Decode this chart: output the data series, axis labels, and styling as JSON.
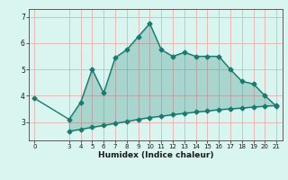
{
  "title": "",
  "xlabel": "Humidex (Indice chaleur)",
  "bg_color": "#d8f5f0",
  "line_color": "#1a7a6e",
  "fill_color": "#1a7a6e",
  "fill_alpha": 0.25,
  "grid_color": "#e8b0b0",
  "upper_x": [
    0,
    3,
    4,
    5,
    6,
    7,
    8,
    9,
    10,
    11,
    12,
    13,
    14,
    15,
    16,
    17,
    18,
    19,
    20,
    21
  ],
  "upper_y": [
    3.9,
    3.1,
    3.75,
    5.0,
    4.1,
    5.45,
    5.75,
    6.25,
    6.75,
    5.75,
    5.5,
    5.65,
    5.5,
    5.5,
    5.5,
    5.0,
    4.55,
    4.45,
    4.0,
    3.6
  ],
  "lower_x": [
    3,
    4,
    5,
    6,
    7,
    8,
    9,
    10,
    11,
    12,
    13,
    14,
    15,
    16,
    17,
    18,
    19,
    20,
    21
  ],
  "lower_y": [
    2.65,
    2.72,
    2.8,
    2.87,
    2.95,
    3.02,
    3.1,
    3.17,
    3.22,
    3.28,
    3.33,
    3.38,
    3.42,
    3.47,
    3.5,
    3.53,
    3.57,
    3.6,
    3.63
  ],
  "xlim": [
    -0.5,
    21.5
  ],
  "ylim": [
    2.3,
    7.3
  ],
  "yticks": [
    3,
    4,
    5,
    6,
    7
  ],
  "xticks": [
    0,
    3,
    4,
    5,
    6,
    7,
    8,
    9,
    10,
    11,
    12,
    13,
    14,
    15,
    16,
    17,
    18,
    19,
    20,
    21
  ],
  "marker": "D",
  "marker_size": 2.5,
  "linewidth": 1.0,
  "tick_fontsize": 5.5,
  "xlabel_fontsize": 6.5
}
